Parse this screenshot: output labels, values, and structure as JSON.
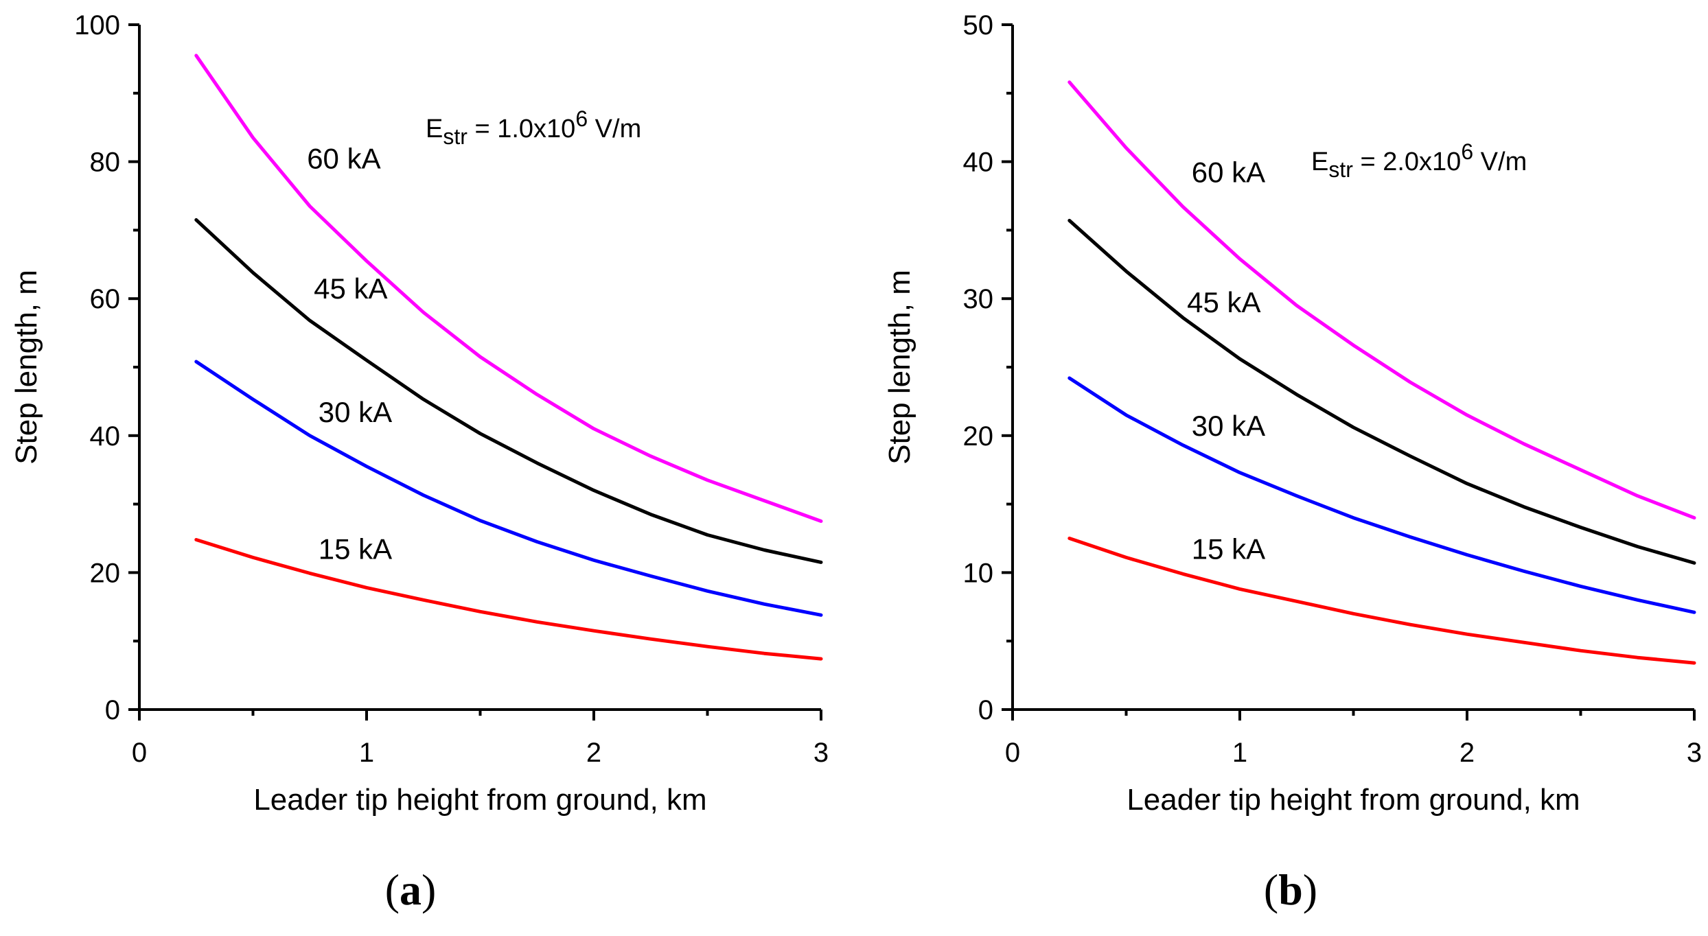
{
  "chart_data": [
    {
      "type": "line",
      "panel_label": "a",
      "annotation": {
        "prefix": "E",
        "subscript": "str",
        "text": " = 1.0x10",
        "superscript": "6",
        "suffix": " V/m"
      },
      "xlabel": "Leader tip height from ground, km",
      "ylabel": "Step length, m",
      "xlim": [
        0,
        3
      ],
      "ylim": [
        0,
        100
      ],
      "x_ticks": [
        "0",
        "1",
        "2",
        "3"
      ],
      "y_ticks": [
        "0",
        "20",
        "40",
        "60",
        "80",
        "100"
      ],
      "x": [
        0.25,
        0.5,
        0.75,
        1.0,
        1.25,
        1.5,
        1.75,
        2.0,
        2.25,
        2.5,
        2.75,
        3.0
      ],
      "series": [
        {
          "name": "15 kA",
          "color": "#ff0000",
          "label_at": [
            0.95,
            22
          ],
          "values": [
            24.8,
            22.2,
            19.9,
            17.8,
            16.0,
            14.3,
            12.8,
            11.5,
            10.3,
            9.2,
            8.2,
            7.4
          ]
        },
        {
          "name": "30 kA",
          "color": "#0000ff",
          "label_at": [
            0.95,
            42
          ],
          "values": [
            50.8,
            45.3,
            40.0,
            35.5,
            31.3,
            27.6,
            24.5,
            21.8,
            19.5,
            17.3,
            15.4,
            13.8
          ]
        },
        {
          "name": "45 kA",
          "color": "#000000",
          "label_at": [
            0.93,
            60
          ],
          "values": [
            71.5,
            63.8,
            56.8,
            51.0,
            45.3,
            40.3,
            36.0,
            32.0,
            28.5,
            25.5,
            23.3,
            21.5
          ]
        },
        {
          "name": "60 kA",
          "color": "#ff00ff",
          "label_at": [
            0.9,
            79
          ],
          "values": [
            95.5,
            83.5,
            73.5,
            65.5,
            58.0,
            51.5,
            46.0,
            41.0,
            37.0,
            33.5,
            30.5,
            27.5
          ]
        }
      ]
    },
    {
      "type": "line",
      "panel_label": "b",
      "annotation": {
        "prefix": "E",
        "subscript": "str",
        "text": " = 2.0x10",
        "superscript": "6",
        "suffix": " V/m"
      },
      "xlabel": "Leader tip height from ground, km",
      "ylabel": "Step length, m",
      "xlim": [
        0,
        3
      ],
      "ylim": [
        0,
        50
      ],
      "x_ticks": [
        "0",
        "1",
        "2",
        "3"
      ],
      "y_ticks": [
        "0",
        "10",
        "20",
        "30",
        "40",
        "50"
      ],
      "x": [
        0.25,
        0.5,
        0.75,
        1.0,
        1.25,
        1.5,
        1.75,
        2.0,
        2.25,
        2.5,
        2.75,
        3.0
      ],
      "series": [
        {
          "name": "15 kA",
          "color": "#ff0000",
          "label_at": [
            0.95,
            11
          ],
          "values": [
            12.5,
            11.1,
            9.9,
            8.8,
            7.9,
            7.0,
            6.2,
            5.5,
            4.9,
            4.3,
            3.8,
            3.4
          ]
        },
        {
          "name": "30 kA",
          "color": "#0000ff",
          "label_at": [
            0.95,
            20
          ],
          "values": [
            24.2,
            21.5,
            19.3,
            17.3,
            15.6,
            14.0,
            12.6,
            11.3,
            10.1,
            9.0,
            8.0,
            7.1
          ]
        },
        {
          "name": "45 kA",
          "color": "#000000",
          "label_at": [
            0.93,
            29
          ],
          "values": [
            35.7,
            32.0,
            28.6,
            25.6,
            23.0,
            20.6,
            18.5,
            16.5,
            14.8,
            13.3,
            11.9,
            10.7
          ]
        },
        {
          "name": "60 kA",
          "color": "#ff00ff",
          "label_at": [
            0.95,
            38.5
          ],
          "values": [
            45.8,
            41.0,
            36.7,
            32.9,
            29.5,
            26.6,
            23.9,
            21.5,
            19.4,
            17.5,
            15.6,
            14.0
          ]
        }
      ]
    }
  ]
}
